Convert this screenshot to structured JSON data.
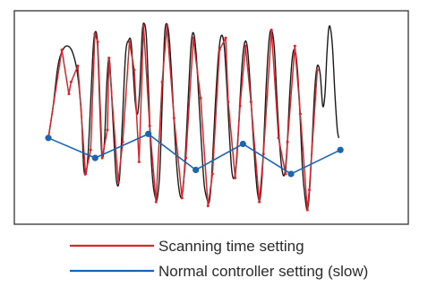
{
  "chart_data": {
    "type": "line",
    "title": "",
    "xlabel": "",
    "ylabel": "",
    "grid": false,
    "legend_placement": "bottom",
    "xlim": [
      0,
      100
    ],
    "ylim": [
      0,
      100
    ],
    "series": [
      {
        "name": "",
        "role": "actual_signal",
        "color": "#1a1a1a",
        "points": [
          [
            0,
            40
          ],
          [
            1.5,
            56
          ],
          [
            3,
            76
          ],
          [
            4.5,
            84
          ],
          [
            6,
            86
          ],
          [
            7.5,
            83
          ],
          [
            9,
            73
          ],
          [
            10.3,
            52
          ],
          [
            11,
            26
          ],
          [
            11.7,
            22
          ],
          [
            12.4,
            32
          ],
          [
            13.2,
            58
          ],
          [
            14,
            85
          ],
          [
            14.6,
            93
          ],
          [
            15.3,
            88
          ],
          [
            16,
            58
          ],
          [
            16.7,
            31
          ],
          [
            17.5,
            38
          ],
          [
            18.2,
            66
          ],
          [
            18.9,
            80
          ],
          [
            19.6,
            66
          ],
          [
            20.5,
            38
          ],
          [
            21.3,
            18
          ],
          [
            22.2,
            20
          ],
          [
            23.1,
            48
          ],
          [
            24.1,
            82
          ],
          [
            25.1,
            89
          ],
          [
            25.8,
            88
          ],
          [
            26.5,
            72
          ],
          [
            27.1,
            58
          ],
          [
            27.8,
            52
          ],
          [
            28.5,
            64
          ],
          [
            29.3,
            93
          ],
          [
            30,
            97
          ],
          [
            30.6,
            90
          ],
          [
            31.2,
            66
          ],
          [
            31.9,
            36
          ],
          [
            32.6,
            18
          ],
          [
            33.4,
            10
          ],
          [
            34,
            10
          ],
          [
            34.8,
            24
          ],
          [
            35.6,
            62
          ],
          [
            36.3,
            92
          ],
          [
            37,
            97
          ],
          [
            37.7,
            90
          ],
          [
            38.5,
            70
          ],
          [
            39.3,
            46
          ],
          [
            40.1,
            25
          ],
          [
            41,
            12
          ],
          [
            41.8,
            12
          ],
          [
            42.7,
            30
          ],
          [
            43.7,
            62
          ],
          [
            44.6,
            88
          ],
          [
            45.4,
            92
          ],
          [
            46.2,
            80
          ],
          [
            47,
            58
          ],
          [
            47.8,
            36
          ],
          [
            48.6,
            17
          ],
          [
            49.4,
            10
          ],
          [
            50.2,
            8
          ],
          [
            51,
            22
          ],
          [
            52,
            54
          ],
          [
            53,
            80
          ],
          [
            53.9,
            91
          ],
          [
            54.8,
            87
          ],
          [
            55.6,
            68
          ],
          [
            56.4,
            44
          ],
          [
            57.2,
            24
          ],
          [
            58,
            20
          ],
          [
            58.8,
            30
          ],
          [
            59.7,
            56
          ],
          [
            60.5,
            78
          ],
          [
            61.3,
            88
          ],
          [
            62.1,
            85
          ],
          [
            62.9,
            68
          ],
          [
            63.7,
            46
          ],
          [
            64.5,
            26
          ],
          [
            65.3,
            12
          ],
          [
            66.1,
            10
          ],
          [
            67,
            30
          ],
          [
            67.9,
            64
          ],
          [
            68.8,
            88
          ],
          [
            69.6,
            94
          ],
          [
            70.5,
            85
          ],
          [
            71.3,
            60
          ],
          [
            72.1,
            38
          ],
          [
            72.9,
            24
          ],
          [
            73.7,
            22
          ],
          [
            74.5,
            36
          ],
          [
            75.3,
            62
          ],
          [
            76.1,
            80
          ],
          [
            76.9,
            84
          ],
          [
            77.7,
            74
          ],
          [
            78.5,
            52
          ],
          [
            79.3,
            24
          ],
          [
            80.1,
            10
          ],
          [
            80.8,
            4
          ],
          [
            81.5,
            14
          ],
          [
            82.3,
            38
          ],
          [
            83.1,
            64
          ],
          [
            83.9,
            76
          ],
          [
            84.8,
            72
          ],
          [
            85.6,
            56
          ],
          [
            86.3,
            62
          ],
          [
            86.9,
            82
          ],
          [
            87.5,
            95
          ],
          [
            88.1,
            94
          ],
          [
            88.7,
            84
          ],
          [
            89.4,
            62
          ],
          [
            90.1,
            45
          ],
          [
            90.6,
            40
          ]
        ]
      },
      {
        "name": "Scanning time setting",
        "color": "#d9252b",
        "points": [
          [
            0,
            40
          ],
          [
            4.2,
            84
          ],
          [
            6.4,
            62
          ],
          [
            7.1,
            68
          ],
          [
            9.2,
            76
          ],
          [
            11.6,
            22
          ],
          [
            13.2,
            34
          ],
          [
            14.5,
            92
          ],
          [
            15.4,
            88
          ],
          [
            16.8,
            30
          ],
          [
            18.4,
            44
          ],
          [
            18.9,
            80
          ],
          [
            21.8,
            18
          ],
          [
            23.2,
            38
          ],
          [
            25.3,
            88
          ],
          [
            26.8,
            74
          ],
          [
            28.3,
            28
          ],
          [
            29.7,
            96
          ],
          [
            31.6,
            46
          ],
          [
            33.6,
            8
          ],
          [
            35.5,
            68
          ],
          [
            37,
            96
          ],
          [
            39.2,
            50
          ],
          [
            41.7,
            10
          ],
          [
            42.9,
            30
          ],
          [
            45.2,
            90
          ],
          [
            47.5,
            60
          ],
          [
            49.8,
            6
          ],
          [
            51.2,
            22
          ],
          [
            53.4,
            84
          ],
          [
            55.3,
            90
          ],
          [
            56.1,
            58
          ],
          [
            58.3,
            20
          ],
          [
            59.8,
            56
          ],
          [
            61.5,
            86
          ],
          [
            63.2,
            58
          ],
          [
            65.8,
            8
          ],
          [
            67.1,
            32
          ],
          [
            69.6,
            94
          ],
          [
            71.8,
            40
          ],
          [
            74,
            22
          ],
          [
            74.6,
            38
          ],
          [
            76.9,
            86
          ],
          [
            78.6,
            52
          ],
          [
            80.8,
            4
          ],
          [
            81.4,
            14
          ],
          [
            83.9,
            74
          ]
        ]
      },
      {
        "name": "Normal controller setting (slow)",
        "color": "#1a66b0",
        "points": [
          [
            0,
            40
          ],
          [
            14.6,
            30
          ],
          [
            31.2,
            42
          ],
          [
            46,
            24
          ],
          [
            60.7,
            37
          ],
          [
            75.7,
            22
          ],
          [
            91.1,
            34
          ]
        ]
      }
    ]
  }
}
